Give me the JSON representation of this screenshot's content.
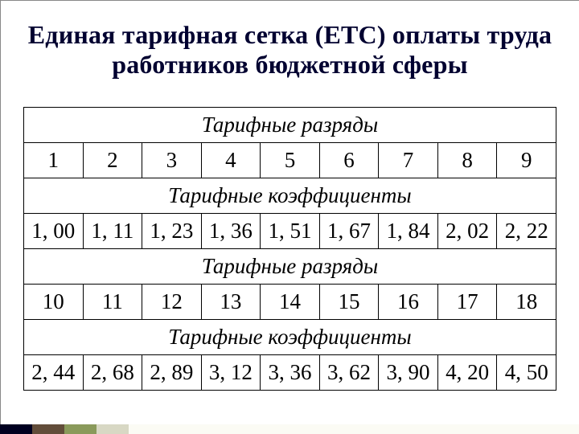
{
  "title": "Единая тарифная сетка (ЕТС) оплаты труда работников бюджетной сферы",
  "table": {
    "section_headers": [
      "Тарифные разряды",
      "Тарифные коэффициенты",
      "Тарифные разряды",
      "Тарифные коэффициенты"
    ],
    "rows": [
      [
        "1",
        "2",
        "3",
        "4",
        "5",
        "6",
        "7",
        "8",
        "9"
      ],
      [
        "1, 00",
        "1, 11",
        "1, 23",
        "1, 36",
        "1, 51",
        "1, 67",
        "1, 84",
        "2, 02",
        "2, 22"
      ],
      [
        "10",
        "11",
        "12",
        "13",
        "14",
        "15",
        "16",
        "17",
        "18"
      ],
      [
        "2, 44",
        "2, 68",
        "2, 89",
        "3, 12",
        "3, 36",
        "3, 62",
        "3, 90",
        "4, 20",
        "4, 50"
      ]
    ],
    "columns": 9,
    "border_color": "#000000",
    "cell_font_size": 27,
    "header_font_style": "italic"
  },
  "colors": {
    "title_color": "#000030",
    "background": "#ffffff",
    "accent": [
      "#000020",
      "#624d3a",
      "#8a9a5b",
      "#d8d8c4",
      "#fbfbf4"
    ]
  }
}
